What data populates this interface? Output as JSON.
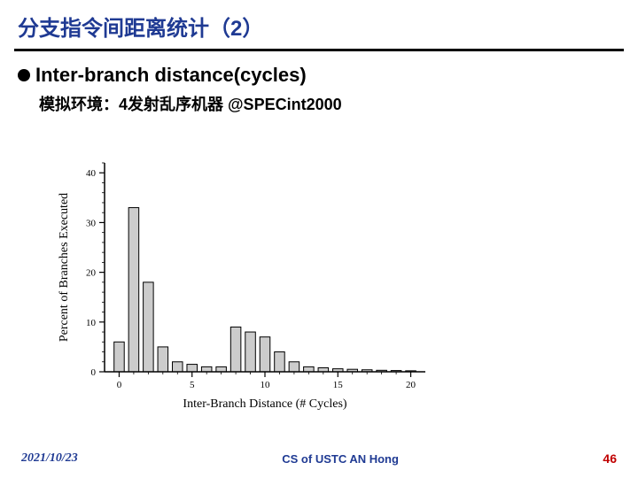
{
  "slide": {
    "title": "分支指令间距离统计（2）",
    "subtitle": "Inter-branch distance(cycles)",
    "env": "模拟环境：4发射乱序机器 @SPECint2000"
  },
  "footer": {
    "date": "2021/10/23",
    "center": "CS of USTC AN Hong",
    "pagenum": "46"
  },
  "chart": {
    "type": "bar",
    "xlabel": "Inter-Branch Distance (# Cycles)",
    "ylabel": "Percent of Branches Executed",
    "xlim": [
      -1,
      21
    ],
    "ylim": [
      0,
      42
    ],
    "xtick_major": [
      0,
      5,
      10,
      15,
      20
    ],
    "ytick_major": [
      0,
      10,
      20,
      30,
      40
    ],
    "categories": [
      0,
      1,
      2,
      3,
      4,
      5,
      6,
      7,
      8,
      9,
      10,
      11,
      12,
      13,
      14,
      15,
      16,
      17,
      18,
      19,
      20
    ],
    "values": [
      6,
      33,
      18,
      5,
      2,
      1.5,
      1,
      1,
      9,
      8,
      7,
      4,
      2,
      1,
      0.8,
      0.6,
      0.5,
      0.4,
      0.3,
      0.25,
      0.2
    ],
    "bar_fill": "#cccccc",
    "bar_stroke": "#000000",
    "bar_width": 0.7,
    "title_fontsize": 14,
    "label_fontsize": 14,
    "tick_fontsize": 11,
    "axis_color": "#000000",
    "background": "#ffffff",
    "font_family": "Times New Roman"
  }
}
